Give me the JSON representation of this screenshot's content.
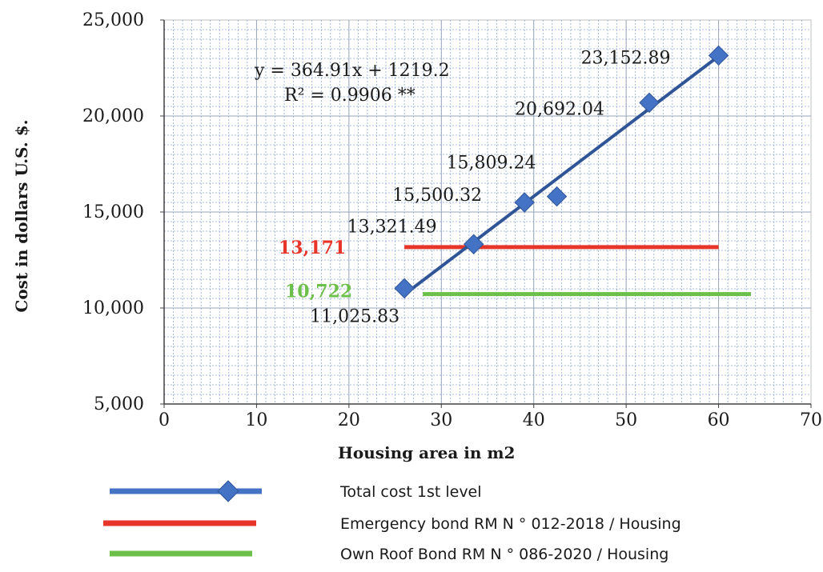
{
  "chart_data": {
    "type": "scatter",
    "xlabel": "Housing area in m2",
    "ylabel": "Cost in dollars U.S. $.",
    "xlim": [
      0,
      70
    ],
    "ylim": [
      5000,
      25000
    ],
    "x_ticks": [
      "0",
      "10",
      "20",
      "30",
      "40",
      "50",
      "60",
      "70"
    ],
    "y_ticks": [
      "5,000",
      "10,000",
      "15,000",
      "20,000",
      "25,000"
    ],
    "grid": true,
    "series": [
      {
        "name": "Total cost 1st level",
        "color": "#4472c4",
        "marker": "diamond",
        "points": [
          {
            "x": 26,
            "y": 11025.83,
            "label": "11,025.83"
          },
          {
            "x": 33.5,
            "y": 13321.49,
            "label": "13,321.49"
          },
          {
            "x": 39,
            "y": 15500.32,
            "label": "15,500.32"
          },
          {
            "x": 42.5,
            "y": 15809.24,
            "label": "15,809.24"
          },
          {
            "x": 52.5,
            "y": 20692.04,
            "label": "20,692.04"
          },
          {
            "x": 60,
            "y": 23152.89,
            "label": "23,152.89"
          }
        ],
        "trendline": {
          "x_start": 26,
          "x_end": 60,
          "color": "#2f5597"
        }
      }
    ],
    "trend_equation": "y = 364.91x + 1219.2",
    "r_squared": "R² = 0.9906 **",
    "reference_lines": [
      {
        "name": "Emergency bond RM N ° 012-2018 / Housing",
        "value": 13171,
        "label": "13,171",
        "x_start": 26,
        "x_end": 60,
        "color": "#e8352a"
      },
      {
        "name": "Own Roof Bond RM N ° 086-2020 / Housing",
        "value": 10722,
        "label": "10,722",
        "x_start": 28,
        "x_end": 63.5,
        "color": "#6cc04a"
      }
    ],
    "legend": [
      {
        "label": "Total cost 1st level",
        "color": "#4472c4",
        "marker": "diamond"
      },
      {
        "label": "Emergency bond RM N ° 012-2018 / Housing",
        "color": "#e8352a"
      },
      {
        "label": "Own Roof Bond RM N ° 086-2020 / Housing",
        "color": "#6cc04a"
      }
    ]
  }
}
